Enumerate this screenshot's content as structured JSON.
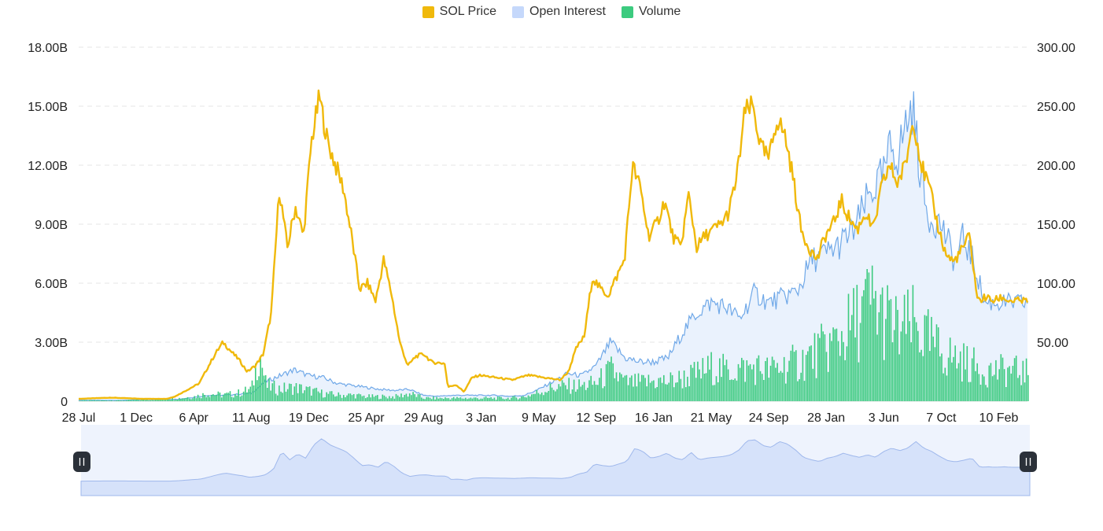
{
  "legend": [
    {
      "label": "SOL Price",
      "color": "#F0B90B"
    },
    {
      "label": "Open Interest",
      "color": "#C5D8FB"
    },
    {
      "label": "Volume",
      "color": "#3CCB7F"
    }
  ],
  "chart_data": {
    "type": "line",
    "x_tick_labels": [
      "28 Jul",
      "1 Dec",
      "6 Apr",
      "11 Aug",
      "19 Dec",
      "25 Apr",
      "29 Aug",
      "3 Jan",
      "9 May",
      "12 Sep",
      "16 Jan",
      "21 May",
      "24 Sep",
      "28 Jan",
      "3 Jun",
      "7 Oct",
      "10 Feb"
    ],
    "y_left": {
      "ticks": [
        "0",
        "3.00B",
        "6.00B",
        "9.00B",
        "12.00B",
        "15.00B",
        "18.00B"
      ],
      "range": [
        0,
        18000000000
      ]
    },
    "y_right": {
      "ticks": [
        "50.00",
        "100.00",
        "150.00",
        "200.00",
        "250.00",
        "300.00"
      ],
      "range": [
        0,
        300
      ]
    },
    "grid": true,
    "legend_position": "top-center",
    "series": [
      {
        "name": "SOL Price",
        "axis": "right",
        "color": "#F0B90B",
        "points": [
          [
            0,
            2
          ],
          [
            2,
            3
          ],
          [
            4,
            2
          ],
          [
            5.5,
            2
          ],
          [
            6,
            4
          ],
          [
            7.5,
            15
          ],
          [
            8.5,
            40
          ],
          [
            9,
            50
          ],
          [
            9.5,
            42
          ],
          [
            10,
            35
          ],
          [
            10.5,
            25
          ],
          [
            11,
            30
          ],
          [
            11.5,
            40
          ],
          [
            12,
            75
          ],
          [
            12.5,
            180
          ],
          [
            13,
            130
          ],
          [
            13.5,
            165
          ],
          [
            14,
            140
          ],
          [
            14.5,
            220
          ],
          [
            15,
            258
          ],
          [
            15.5,
            220
          ],
          [
            16,
            200
          ],
          [
            16.5,
            180
          ],
          [
            17,
            140
          ],
          [
            17.5,
            95
          ],
          [
            18,
            100
          ],
          [
            18.5,
            85
          ],
          [
            19,
            120
          ],
          [
            19.5,
            90
          ],
          [
            20,
            50
          ],
          [
            20.5,
            30
          ],
          [
            21,
            38
          ],
          [
            21.5,
            40
          ],
          [
            22,
            33
          ],
          [
            22.8,
            32
          ],
          [
            23,
            12
          ],
          [
            23.5,
            14
          ],
          [
            24,
            8
          ],
          [
            24.5,
            20
          ],
          [
            25,
            22
          ],
          [
            26,
            20
          ],
          [
            27,
            18
          ],
          [
            28,
            22
          ],
          [
            29,
            20
          ],
          [
            30,
            18
          ],
          [
            30.5,
            25
          ],
          [
            31,
            45
          ],
          [
            31.5,
            55
          ],
          [
            32,
            105
          ],
          [
            32.5,
            95
          ],
          [
            33,
            90
          ],
          [
            34,
            120
          ],
          [
            34.5,
            200
          ],
          [
            35,
            180
          ],
          [
            35.5,
            140
          ],
          [
            36,
            150
          ],
          [
            36.5,
            170
          ],
          [
            37,
            140
          ],
          [
            37.5,
            130
          ],
          [
            38,
            175
          ],
          [
            38.5,
            130
          ],
          [
            39,
            140
          ],
          [
            39.5,
            145
          ],
          [
            40,
            150
          ],
          [
            40.5,
            160
          ],
          [
            41,
            190
          ],
          [
            41.5,
            245
          ],
          [
            42,
            250
          ],
          [
            42.5,
            215
          ],
          [
            43,
            205
          ],
          [
            43.5,
            240
          ],
          [
            44,
            225
          ],
          [
            44.5,
            190
          ],
          [
            45,
            145
          ],
          [
            45.5,
            130
          ],
          [
            46,
            120
          ],
          [
            46.5,
            140
          ],
          [
            47,
            150
          ],
          [
            47.5,
            170
          ],
          [
            48,
            155
          ],
          [
            48.5,
            145
          ],
          [
            49,
            160
          ],
          [
            49.5,
            145
          ],
          [
            50,
            180
          ],
          [
            50.5,
            200
          ],
          [
            51,
            185
          ],
          [
            51.5,
            200
          ],
          [
            52,
            240
          ],
          [
            52.5,
            200
          ],
          [
            53,
            180
          ],
          [
            53.5,
            150
          ],
          [
            54,
            125
          ],
          [
            54.5,
            118
          ],
          [
            55,
            128
          ],
          [
            55.5,
            140
          ],
          [
            56,
            85
          ],
          [
            56.5,
            88
          ],
          [
            57,
            85
          ],
          [
            57.5,
            88
          ],
          [
            58,
            85
          ],
          [
            59,
            85
          ],
          [
            60,
            85
          ]
        ]
      },
      {
        "name": "Open Interest",
        "axis": "left",
        "color": "#6FA8E8",
        "points": [
          [
            0,
            0.05
          ],
          [
            3,
            0.05
          ],
          [
            5,
            0.08
          ],
          [
            7,
            0.1
          ],
          [
            8,
            0.2
          ],
          [
            9,
            0.3
          ],
          [
            10,
            0.3
          ],
          [
            11,
            0.35
          ],
          [
            12,
            0.4
          ],
          [
            13,
            1.0
          ],
          [
            14,
            1.3
          ],
          [
            15,
            1.6
          ],
          [
            16,
            1.3
          ],
          [
            17,
            1.2
          ],
          [
            18,
            0.9
          ],
          [
            19,
            0.8
          ],
          [
            20,
            0.7
          ],
          [
            21,
            0.6
          ],
          [
            22,
            0.55
          ],
          [
            23,
            0.6
          ],
          [
            24,
            0.3
          ],
          [
            25,
            0.25
          ],
          [
            26,
            0.3
          ],
          [
            27,
            0.3
          ],
          [
            28,
            0.3
          ],
          [
            29,
            0.3
          ],
          [
            30,
            0.25
          ],
          [
            31,
            0.3
          ],
          [
            32,
            0.6
          ],
          [
            33,
            1.0
          ],
          [
            34,
            1.4
          ],
          [
            35,
            1.3
          ],
          [
            36,
            1.8
          ],
          [
            37,
            3.0
          ],
          [
            38,
            2.2
          ],
          [
            39,
            2.0
          ],
          [
            40,
            2.0
          ],
          [
            41,
            2.2
          ],
          [
            42,
            3.5
          ],
          [
            43,
            4.5
          ],
          [
            44,
            5.0
          ],
          [
            45,
            4.8
          ],
          [
            46,
            4.2
          ],
          [
            47,
            5.5
          ],
          [
            48,
            5.0
          ],
          [
            49,
            5.3
          ],
          [
            50,
            5.6
          ],
          [
            51,
            7.2
          ],
          [
            52,
            7.5
          ],
          [
            53,
            8.0
          ],
          [
            54,
            8.8
          ],
          [
            55,
            10.5
          ],
          [
            56,
            11.5
          ],
          [
            56.5,
            13.0
          ],
          [
            57,
            12.5
          ],
          [
            57.5,
            14.0
          ],
          [
            58,
            15.0
          ],
          [
            58.5,
            12.0
          ],
          [
            59,
            9.5
          ],
          [
            60,
            9.0
          ],
          [
            60.5,
            8.0
          ],
          [
            61,
            7.0
          ],
          [
            61.5,
            8.3
          ],
          [
            62,
            7.5
          ],
          [
            62.5,
            6.5
          ],
          [
            63,
            5.0
          ],
          [
            64,
            5.0
          ],
          [
            65,
            5.0
          ],
          [
            66,
            5.0
          ],
          [
            67,
            5.0
          ]
        ]
      },
      {
        "name": "Volume",
        "axis": "left",
        "color": "#3CCB7F",
        "points": [
          [
            0,
            0.05
          ],
          [
            3,
            0.05
          ],
          [
            5,
            0.1
          ],
          [
            7,
            0.2
          ],
          [
            8,
            0.3
          ],
          [
            9,
            0.5
          ],
          [
            10,
            0.4
          ],
          [
            11,
            0.5
          ],
          [
            12,
            0.8
          ],
          [
            12.5,
            3.4
          ],
          [
            13,
            1.0
          ],
          [
            14,
            0.8
          ],
          [
            15,
            0.9
          ],
          [
            16,
            0.7
          ],
          [
            17,
            0.5
          ],
          [
            18,
            0.4
          ],
          [
            19,
            0.4
          ],
          [
            20,
            0.3
          ],
          [
            21,
            0.3
          ],
          [
            22,
            0.3
          ],
          [
            23,
            0.5
          ],
          [
            24,
            0.2
          ],
          [
            25,
            0.2
          ],
          [
            26,
            0.2
          ],
          [
            27,
            0.2
          ],
          [
            28,
            0.2
          ],
          [
            29,
            0.2
          ],
          [
            30,
            0.2
          ],
          [
            31,
            0.3
          ],
          [
            32,
            0.6
          ],
          [
            33,
            0.9
          ],
          [
            34,
            1.0
          ],
          [
            35,
            1.0
          ],
          [
            36,
            1.2
          ],
          [
            37,
            2.0
          ],
          [
            38,
            1.2
          ],
          [
            39,
            1.2
          ],
          [
            40,
            1.3
          ],
          [
            41,
            1.3
          ],
          [
            42,
            1.5
          ],
          [
            43,
            1.8
          ],
          [
            44,
            2.2
          ],
          [
            45,
            2.0
          ],
          [
            46,
            2.1
          ],
          [
            47,
            2.2
          ],
          [
            48,
            2.0
          ],
          [
            49,
            2.3
          ],
          [
            50,
            2.5
          ],
          [
            51,
            3.0
          ],
          [
            52,
            3.5
          ],
          [
            53,
            4.2
          ],
          [
            54,
            5.2
          ],
          [
            55,
            6.5
          ],
          [
            56,
            5.5
          ],
          [
            57,
            4.5
          ],
          [
            58,
            5.0
          ],
          [
            59,
            4.0
          ],
          [
            60,
            3.2
          ],
          [
            61,
            2.8
          ],
          [
            62,
            2.4
          ],
          [
            63,
            2.0
          ],
          [
            64,
            2.0
          ],
          [
            65,
            2.0
          ],
          [
            66,
            1.8
          ],
          [
            67,
            1.7
          ]
        ]
      }
    ]
  }
}
